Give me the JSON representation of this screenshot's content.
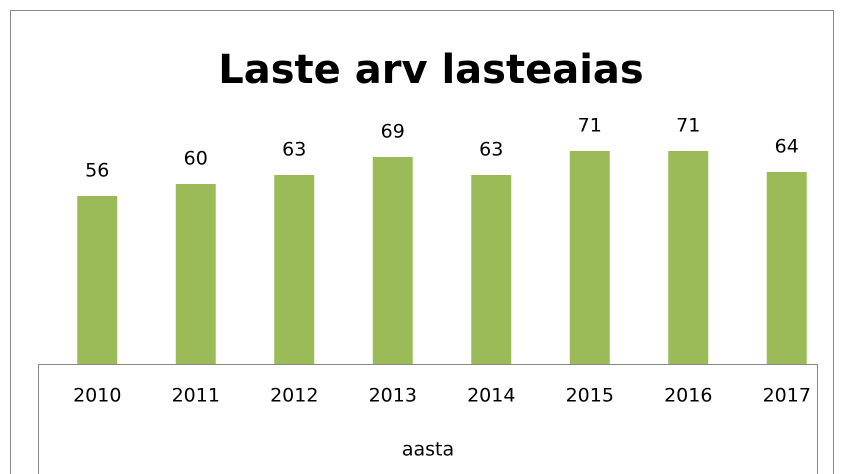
{
  "chart_data": {
    "type": "bar",
    "title": "Laste arv lasteaias",
    "categories": [
      "2010",
      "2011",
      "2012",
      "2013",
      "2014",
      "2015",
      "2016",
      "2017"
    ],
    "values": [
      56,
      60,
      63,
      69,
      63,
      71,
      71,
      64
    ],
    "color": "#9bbb59",
    "x_label": "aasta",
    "ylim": [
      0,
      110
    ]
  }
}
